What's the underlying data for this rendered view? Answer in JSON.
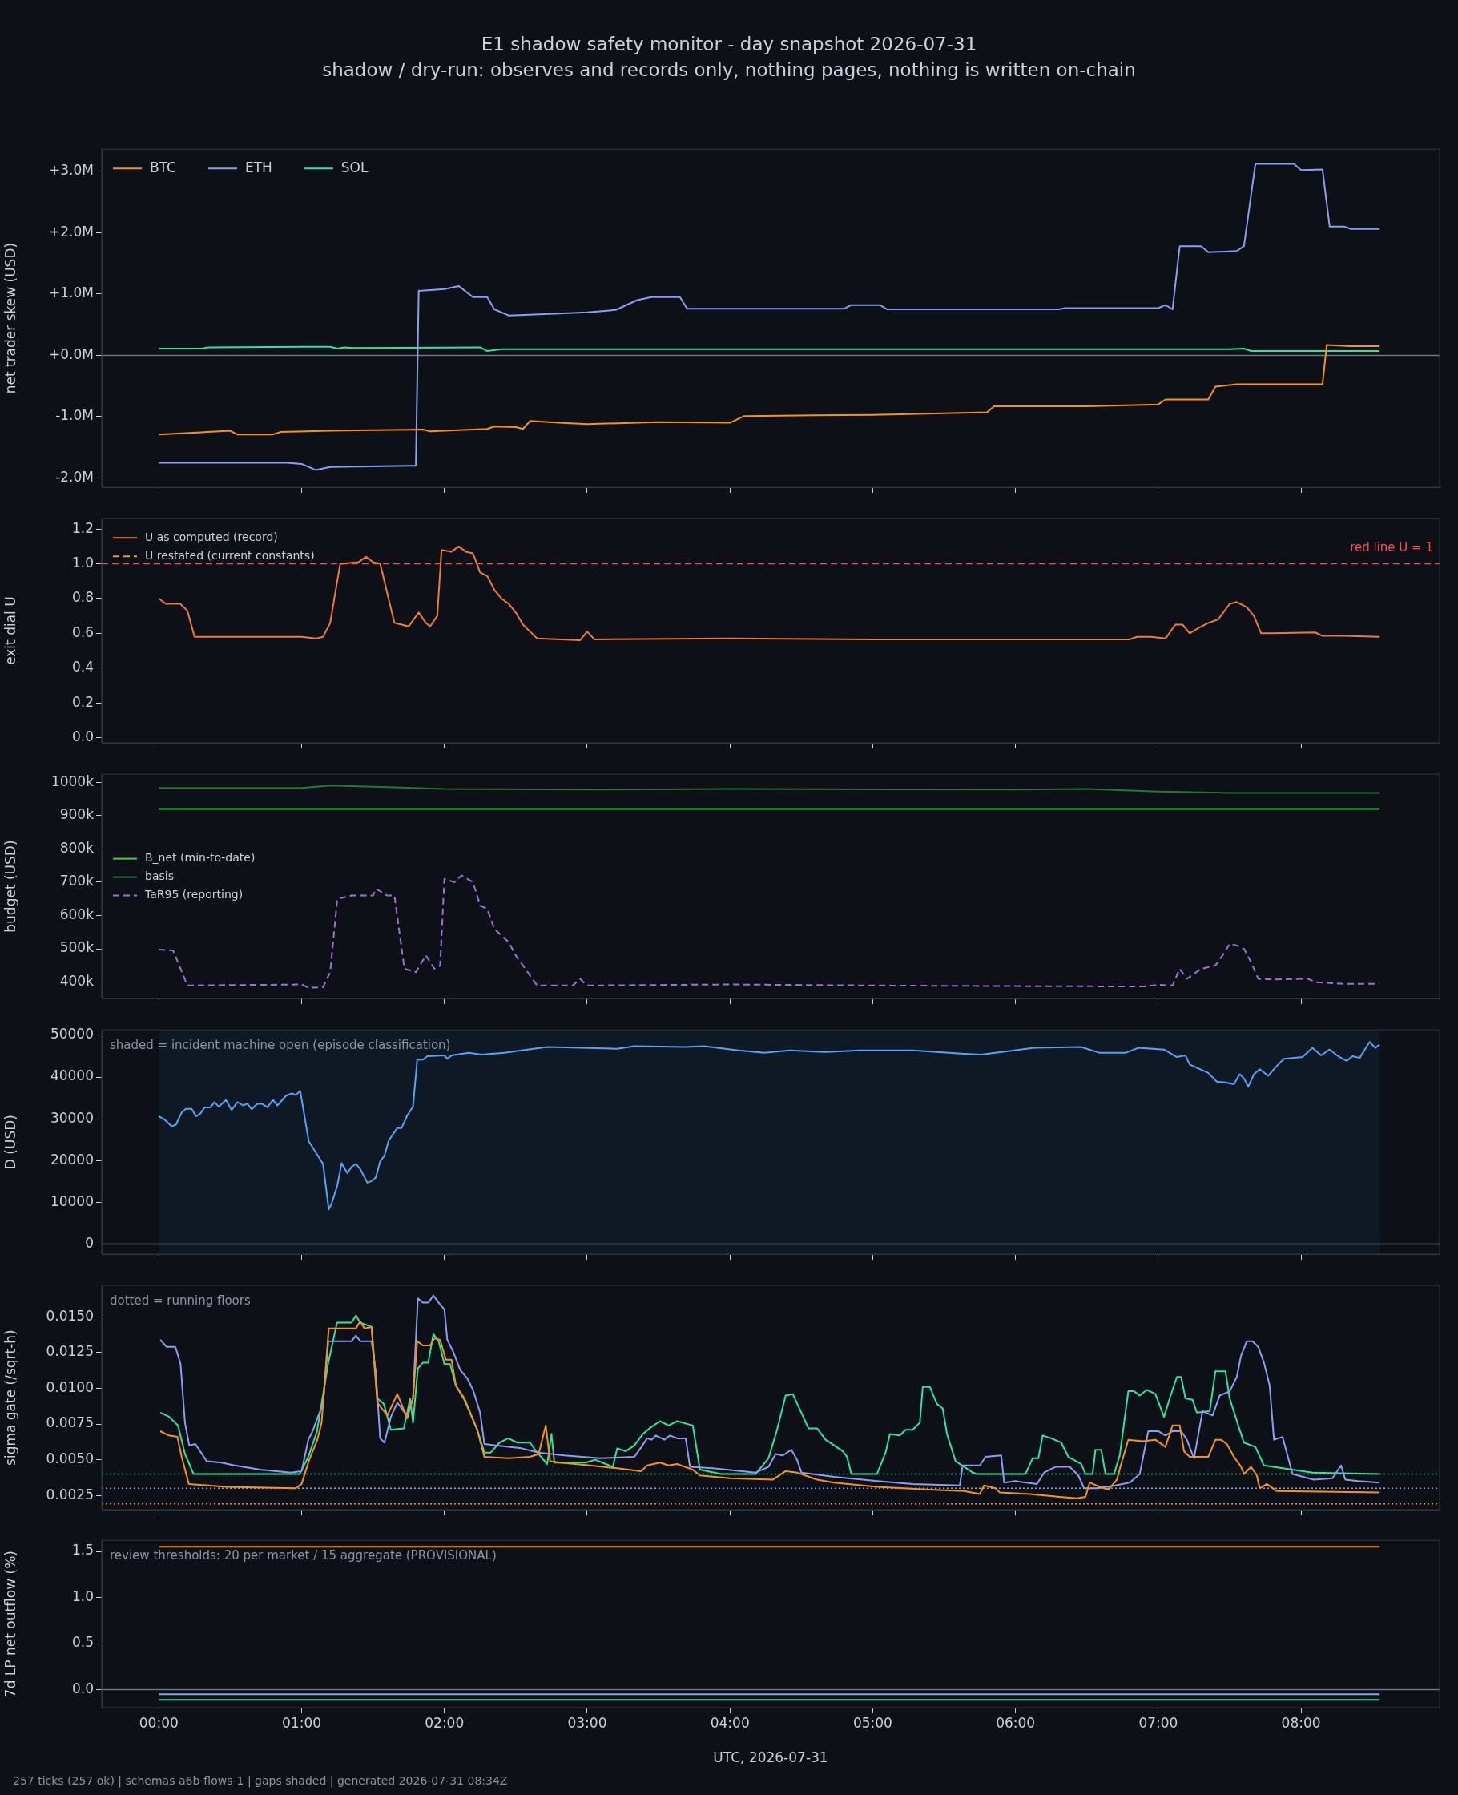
{
  "chart_data": [
    {
      "type": "line",
      "title": "E1 shadow safety monitor - day snapshot 2026-07-31",
      "subtitle": "shadow / dry-run: observes and records only, nothing pages, nothing is written on-chain",
      "ylabel": "net trader skew (USD)",
      "xlim": [
        -0.4,
        8.97
      ],
      "xticks": [
        {
          "value": 0,
          "label": null
        },
        {
          "value": 1,
          "label": null
        },
        {
          "value": 2,
          "label": null
        },
        {
          "value": 3,
          "label": null
        },
        {
          "value": 4,
          "label": null
        },
        {
          "value": 5,
          "label": null
        },
        {
          "value": 6,
          "label": null
        },
        {
          "value": 7,
          "label": null
        },
        {
          "value": 8,
          "label": null
        }
      ],
      "ylim": [
        -2150000,
        3360000
      ],
      "yticks": [
        {
          "value": -2000000,
          "label": "-2.0M"
        },
        {
          "value": -1000000,
          "label": "-1.0M"
        },
        {
          "value": 0,
          "label": "+0.0M"
        },
        {
          "value": 1000000,
          "label": "+1.0M"
        },
        {
          "value": 2000000,
          "label": "+2.0M"
        },
        {
          "value": 3000000,
          "label": "+3.0M"
        }
      ],
      "tick_labels": "y",
      "legend": "top left",
      "series": [
        {
          "name": "BTC",
          "color": "#f7931a",
          "x": [
            0,
            0.5,
            0.55,
            0.8,
            0.85,
            1.2,
            1.5,
            1.85,
            1.9,
            2.3,
            2.35,
            2.5,
            2.55,
            2.6,
            2.8,
            3.0,
            3.5,
            4.0,
            4.1,
            5.0,
            5.8,
            5.85,
            6.5,
            7.0,
            7.05,
            7.15,
            7.35,
            7.4,
            7.55,
            8.15,
            8.18,
            8.35,
            8.55
          ],
          "values": [
            -1290000,
            -1230000,
            -1290000,
            -1290000,
            -1250000,
            -1230000,
            -1220000,
            -1210000,
            -1240000,
            -1200000,
            -1160000,
            -1170000,
            -1200000,
            -1070000,
            -1100000,
            -1120000,
            -1090000,
            -1100000,
            -990000,
            -970000,
            -930000,
            -830000,
            -830000,
            -800000,
            -720000,
            -720000,
            -720000,
            -510000,
            -470000,
            -470000,
            170000,
            150000,
            150000
          ]
        },
        {
          "name": "ETH",
          "color": "#8f9cf5",
          "x": [
            0,
            0.9,
            1.0,
            1.1,
            1.2,
            1.8,
            1.82,
            2.0,
            2.1,
            2.2,
            2.3,
            2.35,
            2.45,
            2.7,
            3.0,
            3.2,
            3.35,
            3.45,
            3.65,
            3.7,
            4.8,
            4.85,
            5.05,
            5.1,
            6.3,
            6.35,
            7.0,
            7.05,
            7.1,
            7.15,
            7.3,
            7.35,
            7.55,
            7.6,
            7.68,
            7.95,
            8.0,
            8.15,
            8.2,
            8.3,
            8.35,
            8.55
          ],
          "values": [
            -1750000,
            -1750000,
            -1770000,
            -1870000,
            -1820000,
            -1800000,
            1050000,
            1080000,
            1130000,
            950000,
            950000,
            750000,
            650000,
            670000,
            700000,
            740000,
            900000,
            950000,
            950000,
            760000,
            760000,
            820000,
            820000,
            750000,
            750000,
            770000,
            770000,
            820000,
            750000,
            1780000,
            1780000,
            1680000,
            1700000,
            1780000,
            3120000,
            3120000,
            3020000,
            3030000,
            2100000,
            2100000,
            2060000,
            2060000
          ]
        },
        {
          "name": "SOL",
          "color": "#2ee59d",
          "x": [
            0,
            0.3,
            0.35,
            1.0,
            1.2,
            1.25,
            1.3,
            1.35,
            2.25,
            2.3,
            2.4,
            7.5,
            7.6,
            7.65,
            8.55
          ],
          "values": [
            110000,
            110000,
            130000,
            140000,
            140000,
            110000,
            130000,
            120000,
            130000,
            70000,
            100000,
            100000,
            110000,
            70000,
            70000
          ]
        }
      ],
      "ref_lines": [
        {
          "axis": "y",
          "value": 0,
          "color": "#6e7681"
        }
      ]
    },
    {
      "type": "line",
      "ylabel": "exit dial U",
      "xlim": [
        -0.4,
        8.97
      ],
      "xticks": [
        {
          "value": 0,
          "label": null
        },
        {
          "value": 1,
          "label": null
        },
        {
          "value": 2,
          "label": null
        },
        {
          "value": 3,
          "label": null
        },
        {
          "value": 4,
          "label": null
        },
        {
          "value": 5,
          "label": null
        },
        {
          "value": 6,
          "label": null
        },
        {
          "value": 7,
          "label": null
        },
        {
          "value": 8,
          "label": null
        }
      ],
      "ylim": [
        -0.03,
        1.26
      ],
      "yticks": [
        {
          "value": 0,
          "label": "0.0"
        },
        {
          "value": 0.2,
          "label": "0.2"
        },
        {
          "value": 0.4,
          "label": "0.4"
        },
        {
          "value": 0.6,
          "label": "0.6"
        },
        {
          "value": 0.8,
          "label": "0.8"
        },
        {
          "value": 1.0,
          "label": "1.0"
        },
        {
          "value": 1.2,
          "label": "1.2"
        }
      ],
      "tick_labels": "y",
      "legend": "top left",
      "series": [
        {
          "name": "U as computed (record)",
          "color": "#f07a3c",
          "x": [
            0,
            0.05,
            0.15,
            0.2,
            0.25,
            1.0,
            1.1,
            1.15,
            1.2,
            1.27,
            1.4,
            1.45,
            1.5,
            1.55,
            1.65,
            1.75,
            1.82,
            1.87,
            1.9,
            1.95,
            1.98,
            2.05,
            2.1,
            2.15,
            2.2,
            2.25,
            2.3,
            2.35,
            2.4,
            2.45,
            2.5,
            2.55,
            2.65,
            2.95,
            3.0,
            3.05,
            4.0,
            5.0,
            6.0,
            6.8,
            6.85,
            6.95,
            7.05,
            7.12,
            7.17,
            7.22,
            7.28,
            7.35,
            7.42,
            7.5,
            7.55,
            7.62,
            7.67,
            7.72,
            7.8,
            8.1,
            8.15,
            8.3,
            8.55
          ],
          "values": [
            0.8,
            0.77,
            0.77,
            0.73,
            0.58,
            0.58,
            0.57,
            0.58,
            0.66,
            1.0,
            1.01,
            1.04,
            1.01,
            1.0,
            0.66,
            0.64,
            0.72,
            0.66,
            0.64,
            0.7,
            1.08,
            1.07,
            1.1,
            1.07,
            1.06,
            0.95,
            0.93,
            0.85,
            0.8,
            0.77,
            0.72,
            0.65,
            0.57,
            0.56,
            0.61,
            0.565,
            0.57,
            0.565,
            0.565,
            0.565,
            0.58,
            0.58,
            0.57,
            0.65,
            0.65,
            0.6,
            0.63,
            0.66,
            0.68,
            0.77,
            0.78,
            0.75,
            0.7,
            0.6,
            0.6,
            0.605,
            0.585,
            0.585,
            0.58
          ]
        },
        {
          "name": "U restated (current constants)",
          "color": "#d4a72c",
          "line_style": "dashed"
        }
      ],
      "ref_lines": [
        {
          "axis": "y",
          "value": 1.0,
          "label": "red line U = 1",
          "color": "#ff4d4d",
          "line_style": "dashed"
        }
      ]
    },
    {
      "type": "line",
      "ylabel": "budget (USD)",
      "xlim": [
        -0.4,
        8.97
      ],
      "xticks": [
        {
          "value": 0,
          "label": null
        },
        {
          "value": 1,
          "label": null
        },
        {
          "value": 2,
          "label": null
        },
        {
          "value": 3,
          "label": null
        },
        {
          "value": 4,
          "label": null
        },
        {
          "value": 5,
          "label": null
        },
        {
          "value": 6,
          "label": null
        },
        {
          "value": 7,
          "label": null
        },
        {
          "value": 8,
          "label": null
        }
      ],
      "ylim": [
        351000,
        1024000
      ],
      "yticks": [
        {
          "value": 400000,
          "label": "400k"
        },
        {
          "value": 500000,
          "label": "500k"
        },
        {
          "value": 600000,
          "label": "600k"
        },
        {
          "value": 700000,
          "label": "700k"
        },
        {
          "value": 800000,
          "label": "800k"
        },
        {
          "value": 900000,
          "label": "900k"
        },
        {
          "value": 1000000,
          "label": "1000k"
        }
      ],
      "tick_labels": "y",
      "legend": "left",
      "series": [
        {
          "name": "B_net (min-to-date)",
          "color": "#3fcf4f",
          "x": [
            0,
            8.55
          ],
          "values": [
            920000,
            920000
          ]
        },
        {
          "name": "basis",
          "color": "#237a35",
          "x": [
            0,
            1.0,
            1.2,
            1.4,
            2.0,
            3.0,
            4.0,
            5.0,
            6.0,
            6.5,
            7.0,
            7.5,
            8.0,
            8.55
          ],
          "values": [
            983000,
            983000,
            990000,
            988000,
            980000,
            978000,
            980000,
            979000,
            978000,
            980000,
            972000,
            968000,
            968000,
            968000
          ]
        },
        {
          "name": "TaR95 (reporting)",
          "color": "#a070d8",
          "line_style": "dashed",
          "x": [
            0,
            0.1,
            0.2,
            1.0,
            1.05,
            1.15,
            1.2,
            1.25,
            1.35,
            1.5,
            1.52,
            1.6,
            1.65,
            1.72,
            1.8,
            1.87,
            1.93,
            1.97,
            2.0,
            2.07,
            2.12,
            2.2,
            2.25,
            2.3,
            2.35,
            2.45,
            2.5,
            2.6,
            2.65,
            2.9,
            2.95,
            3.0,
            4.0,
            5.0,
            6.0,
            6.9,
            7.0,
            7.1,
            7.15,
            7.2,
            7.3,
            7.4,
            7.45,
            7.5,
            7.55,
            7.6,
            7.65,
            7.7,
            7.8,
            8.05,
            8.1,
            8.3,
            8.55
          ],
          "values": [
            498000,
            495000,
            390000,
            393000,
            383000,
            385000,
            430000,
            650000,
            660000,
            660000,
            680000,
            660000,
            660000,
            440000,
            430000,
            480000,
            440000,
            450000,
            710000,
            700000,
            720000,
            700000,
            630000,
            620000,
            560000,
            520000,
            480000,
            420000,
            390000,
            390000,
            410000,
            390000,
            393000,
            390000,
            388000,
            387000,
            392000,
            390000,
            440000,
            410000,
            440000,
            450000,
            480000,
            515000,
            510000,
            500000,
            460000,
            410000,
            408000,
            410000,
            400000,
            395000,
            395000
          ]
        }
      ]
    },
    {
      "type": "line",
      "ylabel": "D (USD)",
      "xlim": [
        -0.4,
        8.97
      ],
      "xticks": [
        {
          "value": 0,
          "label": null
        },
        {
          "value": 1,
          "label": null
        },
        {
          "value": 2,
          "label": null
        },
        {
          "value": 3,
          "label": null
        },
        {
          "value": 4,
          "label": null
        },
        {
          "value": 5,
          "label": null
        },
        {
          "value": 6,
          "label": null
        },
        {
          "value": 7,
          "label": null
        },
        {
          "value": 8,
          "label": null
        }
      ],
      "ylim": [
        -2400,
        51300
      ],
      "yticks": [
        0,
        10000,
        20000,
        30000,
        40000,
        50000
      ],
      "tick_labels": "y",
      "series": [
        {
          "color": "#5aa2f5",
          "x": [
            0,
            0.04,
            0.09,
            0.12,
            0.16,
            0.19,
            0.23,
            0.26,
            0.29,
            0.32,
            0.36,
            0.39,
            0.42,
            0.47,
            0.51,
            0.55,
            0.59,
            0.62,
            0.65,
            0.69,
            0.72,
            0.76,
            0.8,
            0.83,
            0.89,
            0.93,
            0.96,
            0.99,
            1.05,
            1.15,
            1.19,
            1.21,
            1.25,
            1.28,
            1.32,
            1.35,
            1.38,
            1.41,
            1.46,
            1.49,
            1.52,
            1.55,
            1.58,
            1.61,
            1.67,
            1.7,
            1.74,
            1.78,
            1.81,
            1.85,
            1.88,
            2.0,
            2.02,
            2.05,
            2.17,
            2.26,
            2.42,
            2.54,
            2.72,
            2.96,
            3.21,
            3.33,
            3.69,
            3.82,
            4.06,
            4.24,
            4.42,
            4.67,
            4.91,
            5.28,
            5.64,
            5.76,
            6.13,
            6.46,
            6.59,
            6.77,
            6.86,
            7.04,
            7.13,
            7.19,
            7.22,
            7.35,
            7.41,
            7.47,
            7.53,
            7.57,
            7.6,
            7.63,
            7.67,
            7.71,
            7.77,
            7.82,
            7.88,
            8.01,
            8.08,
            8.14,
            8.2,
            8.26,
            8.32,
            8.36,
            8.41,
            8.48,
            8.52,
            8.55
          ],
          "values": [
            30600,
            29800,
            28200,
            28600,
            31500,
            32400,
            32400,
            30600,
            31200,
            32700,
            32700,
            34000,
            32900,
            34500,
            32100,
            34000,
            33200,
            33600,
            32300,
            33600,
            33600,
            32800,
            34500,
            33200,
            35500,
            36100,
            35700,
            36700,
            24600,
            19200,
            8300,
            9700,
            14000,
            19400,
            17000,
            18500,
            19200,
            18000,
            14700,
            15100,
            16000,
            19800,
            21200,
            24800,
            27800,
            27800,
            30800,
            32900,
            44200,
            44200,
            45000,
            45200,
            44400,
            45200,
            45800,
            45400,
            45800,
            46400,
            47200,
            47000,
            46800,
            47400,
            47200,
            47400,
            46400,
            45800,
            46400,
            46000,
            46400,
            46400,
            45600,
            45400,
            47000,
            47200,
            45800,
            45800,
            47000,
            46600,
            44800,
            45200,
            43000,
            41000,
            38900,
            38700,
            38300,
            40700,
            39700,
            37700,
            40700,
            41900,
            40300,
            42300,
            44400,
            44800,
            47000,
            45200,
            46600,
            45000,
            43900,
            45000,
            44600,
            48400,
            47000,
            47800
          ]
        }
      ],
      "ref_lines": [
        {
          "axis": "y",
          "value": 0,
          "color": "#6e7681"
        }
      ],
      "bands": [
        {
          "axis": "x",
          "from": 0,
          "to": 8.55,
          "color": "#0f1926"
        }
      ],
      "annotations": [
        "shaded = incident machine open (episode classification)"
      ]
    },
    {
      "type": "line",
      "ylabel": "sigma gate (/sqrt-h)",
      "xlim": [
        -0.4,
        8.97
      ],
      "xticks": [
        {
          "value": 0,
          "label": null
        },
        {
          "value": 1,
          "label": null
        },
        {
          "value": 2,
          "label": null
        },
        {
          "value": 3,
          "label": null
        },
        {
          "value": 4,
          "label": null
        },
        {
          "value": 5,
          "label": null
        },
        {
          "value": 6,
          "label": null
        },
        {
          "value": 7,
          "label": null
        },
        {
          "value": 8,
          "label": null
        }
      ],
      "ylim": [
        0.0015,
        0.0172
      ],
      "yticks": [
        {
          "value": 0.0025,
          "label": "0.0025"
        },
        {
          "value": 0.005,
          "label": "0.0050"
        },
        {
          "value": 0.0075,
          "label": "0.0075"
        },
        {
          "value": 0.01,
          "label": "0.0100"
        },
        {
          "value": 0.0125,
          "label": "0.0125"
        },
        {
          "value": 0.015,
          "label": "0.0150"
        }
      ],
      "tick_labels": "y",
      "series": [
        {
          "color": "#f7931a",
          "x": [
            0.01,
            0.07,
            0.13,
            0.16,
            0.21,
            0.47,
            0.96,
            1.0,
            1.05,
            1.11,
            1.14,
            1.19,
            1.38,
            1.41,
            1.44,
            1.49,
            1.53,
            1.6,
            1.67,
            1.74,
            1.78,
            1.81,
            1.85,
            1.9,
            1.93,
            1.97,
            2.01,
            2.05,
            2.08,
            2.14,
            2.23,
            2.28,
            2.45,
            2.6,
            2.66,
            2.71,
            2.74,
            2.81,
            3.02,
            3.21,
            3.38,
            3.42,
            3.51,
            3.57,
            3.63,
            3.74,
            3.79,
            4.0,
            4.3,
            4.39,
            4.47,
            4.61,
            4.73,
            5.03,
            5.4,
            5.64,
            5.75,
            5.78,
            5.86,
            5.89,
            6.1,
            6.31,
            6.43,
            6.49,
            6.52,
            6.59,
            6.65,
            6.71,
            6.74,
            6.79,
            6.89,
            6.98,
            7.05,
            7.1,
            7.15,
            7.18,
            7.22,
            7.35,
            7.4,
            7.44,
            7.48,
            7.53,
            7.58,
            7.6,
            7.65,
            7.69,
            7.71,
            7.76,
            7.83,
            8.55
          ],
          "values": [
            0.007,
            0.0067,
            0.0066,
            0.0052,
            0.0033,
            0.0031,
            0.003,
            0.0033,
            0.0049,
            0.0064,
            0.0076,
            0.0142,
            0.0142,
            0.0147,
            0.0142,
            0.0143,
            0.009,
            0.0081,
            0.0096,
            0.0079,
            0.0093,
            0.0133,
            0.013,
            0.013,
            0.0135,
            0.0134,
            0.012,
            0.012,
            0.0102,
            0.0093,
            0.0071,
            0.0052,
            0.0051,
            0.0052,
            0.0054,
            0.0074,
            0.0049,
            0.0048,
            0.0046,
            0.0044,
            0.0042,
            0.0046,
            0.0048,
            0.0046,
            0.0047,
            0.0043,
            0.0039,
            0.0037,
            0.0036,
            0.0042,
            0.0041,
            0.0036,
            0.0034,
            0.0031,
            0.0029,
            0.0028,
            0.0026,
            0.0032,
            0.003,
            0.0027,
            0.0026,
            0.0024,
            0.0023,
            0.0024,
            0.0034,
            0.0031,
            0.0029,
            0.0036,
            0.0047,
            0.0064,
            0.0063,
            0.0064,
            0.0059,
            0.0074,
            0.0074,
            0.0056,
            0.0052,
            0.0052,
            0.0064,
            0.0064,
            0.0061,
            0.0052,
            0.0045,
            0.004,
            0.0045,
            0.0039,
            0.003,
            0.0033,
            0.0028,
            0.0027
          ]
        },
        {
          "color": "#8f9cf5",
          "x": [
            0.01,
            0.055,
            0.116,
            0.152,
            0.183,
            0.213,
            0.256,
            0.335,
            0.44,
            0.53,
            0.71,
            0.925,
            1.0,
            1.047,
            1.077,
            1.114,
            1.15,
            1.187,
            1.35,
            1.38,
            1.41,
            1.49,
            1.52,
            1.55,
            1.58,
            1.625,
            1.67,
            1.7,
            1.735,
            1.78,
            1.814,
            1.85,
            1.887,
            1.923,
            1.96,
            2.0,
            2.02,
            2.06,
            2.11,
            2.16,
            2.2,
            2.25,
            2.28,
            2.36,
            2.54,
            2.66,
            2.84,
            3.09,
            3.33,
            3.38,
            3.42,
            3.45,
            3.48,
            3.54,
            3.58,
            3.63,
            3.69,
            3.72,
            3.88,
            4.18,
            4.27,
            4.32,
            4.37,
            4.43,
            4.47,
            4.5,
            4.73,
            5.03,
            5.28,
            5.61,
            5.63,
            5.75,
            5.79,
            5.9,
            5.92,
            6.0,
            6.15,
            6.2,
            6.28,
            6.38,
            6.44,
            6.48,
            6.57,
            6.7,
            6.8,
            6.87,
            6.93,
            7.0,
            7.05,
            7.1,
            7.16,
            7.2,
            7.25,
            7.31,
            7.38,
            7.43,
            7.5,
            7.55,
            7.58,
            7.62,
            7.66,
            7.7,
            7.74,
            7.78,
            7.81,
            7.87,
            7.94,
            8.09,
            8.22,
            8.28,
            8.31,
            8.4,
            8.55
          ],
          "values": [
            0.0134,
            0.0129,
            0.0129,
            0.0117,
            0.0076,
            0.006,
            0.0061,
            0.0049,
            0.0048,
            0.0046,
            0.0043,
            0.0041,
            0.0042,
            0.0064,
            0.007,
            0.008,
            0.0089,
            0.0133,
            0.0133,
            0.0137,
            0.0133,
            0.0133,
            0.0111,
            0.0065,
            0.0062,
            0.008,
            0.009,
            0.0086,
            0.0081,
            0.0093,
            0.0163,
            0.016,
            0.016,
            0.0165,
            0.016,
            0.0155,
            0.0134,
            0.0126,
            0.0113,
            0.0107,
            0.0099,
            0.0083,
            0.0061,
            0.006,
            0.0058,
            0.0055,
            0.0053,
            0.0051,
            0.0052,
            0.0059,
            0.0065,
            0.0064,
            0.0067,
            0.0064,
            0.0067,
            0.0065,
            0.0065,
            0.0045,
            0.0044,
            0.0041,
            0.0045,
            0.0054,
            0.0053,
            0.0057,
            0.005,
            0.0041,
            0.0038,
            0.0035,
            0.0033,
            0.0032,
            0.0046,
            0.0046,
            0.0052,
            0.0053,
            0.0034,
            0.0035,
            0.0033,
            0.0041,
            0.0045,
            0.0045,
            0.0039,
            0.003,
            0.003,
            0.0032,
            0.0034,
            0.004,
            0.007,
            0.007,
            0.0067,
            0.007,
            0.007,
            0.0064,
            0.0051,
            0.0084,
            0.0081,
            0.0095,
            0.0098,
            0.0108,
            0.0123,
            0.0133,
            0.0133,
            0.0129,
            0.0118,
            0.0102,
            0.0064,
            0.0066,
            0.004,
            0.0036,
            0.0037,
            0.0046,
            0.0036,
            0.0035,
            0.0034
          ]
        },
        {
          "color": "#2ee59d",
          "x": [
            0.012,
            0.073,
            0.134,
            0.183,
            0.243,
            0.986,
            1.047,
            1.108,
            1.187,
            1.248,
            1.35,
            1.38,
            1.41,
            1.49,
            1.53,
            1.576,
            1.625,
            1.716,
            1.76,
            1.78,
            1.814,
            1.85,
            1.887,
            1.923,
            1.96,
            2.0,
            2.04,
            2.08,
            2.14,
            2.23,
            2.28,
            2.325,
            2.386,
            2.447,
            2.51,
            2.6,
            2.65,
            2.72,
            2.75,
            2.77,
            2.99,
            3.055,
            3.18,
            3.21,
            3.27,
            3.33,
            3.39,
            3.45,
            3.51,
            3.57,
            3.63,
            3.74,
            3.79,
            3.94,
            4.18,
            4.27,
            4.33,
            4.39,
            4.44,
            4.55,
            4.61,
            4.67,
            4.79,
            4.82,
            4.85,
            5.03,
            5.09,
            5.12,
            5.19,
            5.23,
            5.28,
            5.33,
            5.35,
            5.4,
            5.45,
            5.49,
            5.52,
            5.58,
            5.7,
            5.73,
            6.07,
            6.12,
            6.16,
            6.19,
            6.25,
            6.32,
            6.37,
            6.46,
            6.49,
            6.54,
            6.56,
            6.6,
            6.63,
            6.69,
            6.73,
            6.79,
            6.83,
            6.87,
            6.92,
            6.98,
            7.04,
            7.08,
            7.13,
            7.16,
            7.19,
            7.24,
            7.27,
            7.36,
            7.4,
            7.47,
            7.5,
            7.56,
            7.6,
            7.68,
            7.74,
            8.08,
            8.55
          ],
          "values": [
            0.0083,
            0.008,
            0.0074,
            0.0054,
            0.004,
            0.004,
            0.0052,
            0.007,
            0.0118,
            0.0146,
            0.0146,
            0.0151,
            0.0146,
            0.0143,
            0.0093,
            0.0089,
            0.0071,
            0.0072,
            0.0093,
            0.0076,
            0.0114,
            0.0118,
            0.0118,
            0.0138,
            0.0133,
            0.0117,
            0.0117,
            0.0102,
            0.0092,
            0.0071,
            0.0055,
            0.0055,
            0.0062,
            0.0065,
            0.0062,
            0.0062,
            0.0055,
            0.0047,
            0.0068,
            0.0048,
            0.0048,
            0.005,
            0.0045,
            0.0058,
            0.0056,
            0.006,
            0.0068,
            0.0073,
            0.0077,
            0.0074,
            0.0077,
            0.0074,
            0.0043,
            0.004,
            0.004,
            0.0051,
            0.0071,
            0.0095,
            0.0096,
            0.0072,
            0.0072,
            0.0064,
            0.0056,
            0.0052,
            0.004,
            0.004,
            0.0055,
            0.0068,
            0.0067,
            0.0071,
            0.0071,
            0.0076,
            0.0101,
            0.0101,
            0.0089,
            0.0086,
            0.0068,
            0.0049,
            0.0041,
            0.004,
            0.004,
            0.0051,
            0.0051,
            0.0067,
            0.0065,
            0.0062,
            0.0052,
            0.0047,
            0.004,
            0.004,
            0.0057,
            0.0057,
            0.004,
            0.004,
            0.0053,
            0.0098,
            0.0098,
            0.0095,
            0.0099,
            0.0096,
            0.008,
            0.0093,
            0.0108,
            0.0108,
            0.0093,
            0.0092,
            0.0083,
            0.0084,
            0.0112,
            0.0112,
            0.0093,
            0.0074,
            0.0062,
            0.0059,
            0.0046,
            0.0041,
            0.004
          ]
        }
      ],
      "ref_lines": [
        {
          "axis": "y",
          "value": 0.004,
          "color": "#2ee59d",
          "line_style": "dotted"
        },
        {
          "axis": "y",
          "value": 0.003,
          "color": "#8f9cf5",
          "line_style": "dotted"
        },
        {
          "axis": "y",
          "value": 0.0019,
          "color": "#f7931a",
          "line_style": "dotted"
        }
      ],
      "annotations": [
        "dotted = running floors"
      ]
    },
    {
      "type": "line",
      "xlabel": "UTC, 2026-07-31",
      "ylabel": "7d LP net outflow (%)",
      "xlim": [
        -0.4,
        8.97
      ],
      "xticks": [
        {
          "value": 0,
          "label": "00:00"
        },
        {
          "value": 1,
          "label": "01:00"
        },
        {
          "value": 2,
          "label": "02:00"
        },
        {
          "value": 3,
          "label": "03:00"
        },
        {
          "value": 4,
          "label": "04:00"
        },
        {
          "value": 5,
          "label": "05:00"
        },
        {
          "value": 6,
          "label": "06:00"
        },
        {
          "value": 7,
          "label": "07:00"
        },
        {
          "value": 8,
          "label": "08:00"
        }
      ],
      "ylim": [
        -0.195,
        1.62
      ],
      "yticks": [
        {
          "value": 0,
          "label": "0.0"
        },
        {
          "value": 0.5,
          "label": "0.5"
        },
        {
          "value": 1.0,
          "label": "1.0"
        },
        {
          "value": 1.5,
          "label": "1.5"
        }
      ],
      "series": [
        {
          "color": "#f7931a",
          "x": [
            0,
            8.55
          ],
          "values": [
            1.55,
            1.55
          ]
        },
        {
          "color": "#8f9cf5",
          "x": [
            0,
            8.55
          ],
          "values": [
            -0.05,
            -0.05
          ]
        },
        {
          "color": "#2ee59d",
          "x": [
            0,
            8.55
          ],
          "values": [
            -0.11,
            -0.11
          ]
        }
      ],
      "ref_lines": [
        {
          "axis": "y",
          "value": 0,
          "color": "#6e7681"
        }
      ],
      "annotations": [
        "review thresholds: 20 per market / 15 aggregate (PROVISIONAL)",
        "257 ticks (257 ok) | schemas a6b-flows-1 | gaps shaded | generated 2026-07-31 08:34Z"
      ]
    }
  ]
}
